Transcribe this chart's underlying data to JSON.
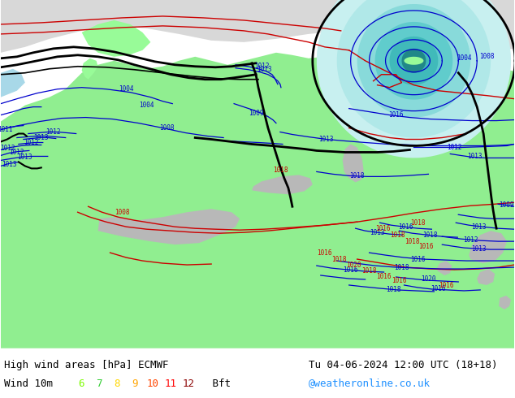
{
  "title_left": "High wind areas [hPa] ECMWF",
  "title_right": "Tu 04-06-2024 12:00 UTC (18+18)",
  "subtitle_left": "Wind 10m",
  "credit": "@weatheronline.co.uk",
  "bft_labels": [
    "6",
    "7",
    "8",
    "9",
    "10",
    "11",
    "12"
  ],
  "bft_colors": [
    "#7cfc00",
    "#32cd32",
    "#ffd700",
    "#ffa500",
    "#ff4500",
    "#ff0000",
    "#8b0000"
  ],
  "bft_suffix": " Bft",
  "figsize": [
    6.34,
    4.9
  ],
  "dpi": 100,
  "text_color": "#000000",
  "credit_color": "#1e90ff",
  "ocean_color": "#d8d8d8",
  "land_color": "#90ee90",
  "land_color2": "#98fb98",
  "gray_land": "#b8b8b8",
  "cyan_fill": "#b0e8e8",
  "footer_bg": "#ffffff",
  "blue_line": "#0000cd",
  "red_line": "#cc0000",
  "black_line": "#000000"
}
